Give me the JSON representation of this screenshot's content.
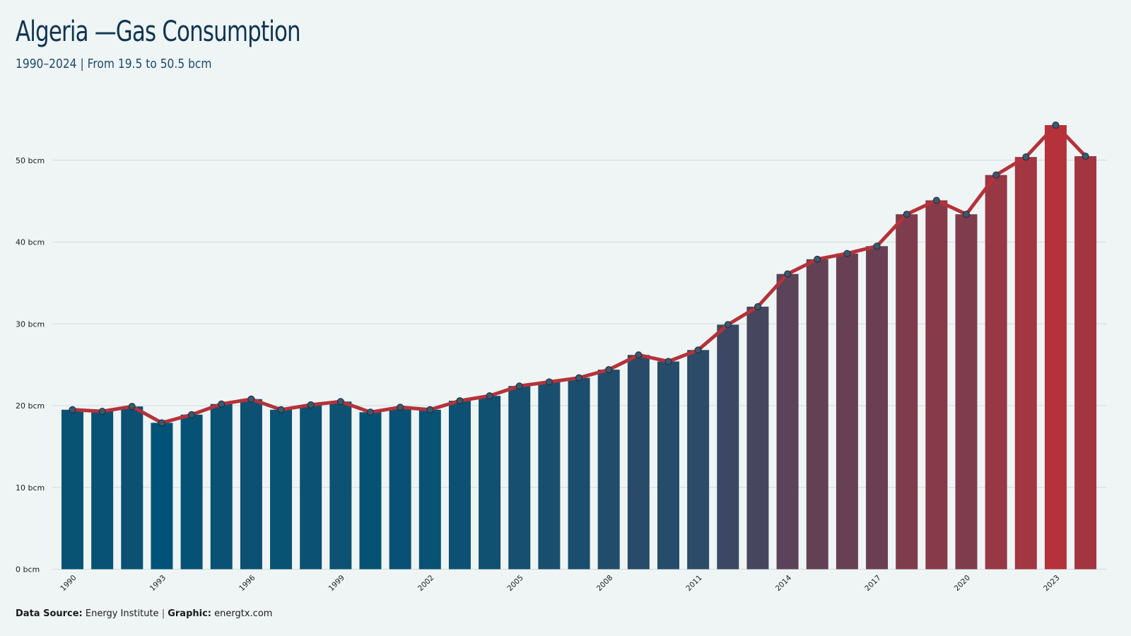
{
  "header": {
    "title": "Algeria —Gas Consumption",
    "subtitle": "1990–2024 | From 19.5 to 50.5 bcm"
  },
  "footer": {
    "source_label": "Data Source:",
    "source_value": "Energy Institute",
    "separator": "|",
    "graphic_label": "Graphic:",
    "graphic_value": "energtx.com"
  },
  "colors": {
    "background": "#eff5f5",
    "bar_low": "#005377",
    "bar_high": "#b5323a",
    "line": "#b5323a",
    "marker_fill": "#3b5870",
    "grid": "#d4dcdd"
  },
  "chart_data": {
    "type": "bar",
    "x": [
      1990,
      1991,
      1992,
      1993,
      1994,
      1995,
      1996,
      1997,
      1998,
      1999,
      2000,
      2001,
      2002,
      2003,
      2004,
      2005,
      2006,
      2007,
      2008,
      2009,
      2010,
      2011,
      2012,
      2013,
      2014,
      2015,
      2016,
      2017,
      2018,
      2019,
      2020,
      2021,
      2022,
      2023,
      2024
    ],
    "values": [
      19.5,
      19.3,
      19.9,
      17.9,
      18.9,
      20.2,
      20.8,
      19.5,
      20.1,
      20.5,
      19.2,
      19.8,
      19.5,
      20.6,
      21.2,
      22.4,
      22.9,
      23.4,
      24.4,
      26.2,
      25.4,
      26.8,
      29.9,
      32.1,
      36.1,
      37.9,
      38.6,
      39.5,
      43.4,
      45.1,
      43.4,
      48.2,
      50.4,
      54.3,
      50.5
    ],
    "overlay": "line-with-markers",
    "y_ticks": [
      0,
      10,
      20,
      30,
      40,
      50
    ],
    "y_tick_labels": [
      "0 bcm",
      "10 bcm",
      "20 bcm",
      "30 bcm",
      "40 bcm",
      "50 bcm"
    ],
    "x_tick_labels": [
      "1990",
      "1993",
      "1996",
      "1999",
      "2002",
      "2005",
      "2008",
      "2011",
      "2014",
      "2017",
      "2020",
      "2023"
    ],
    "ylim": [
      0,
      55
    ],
    "grid": "horizontal",
    "legend": "none"
  }
}
